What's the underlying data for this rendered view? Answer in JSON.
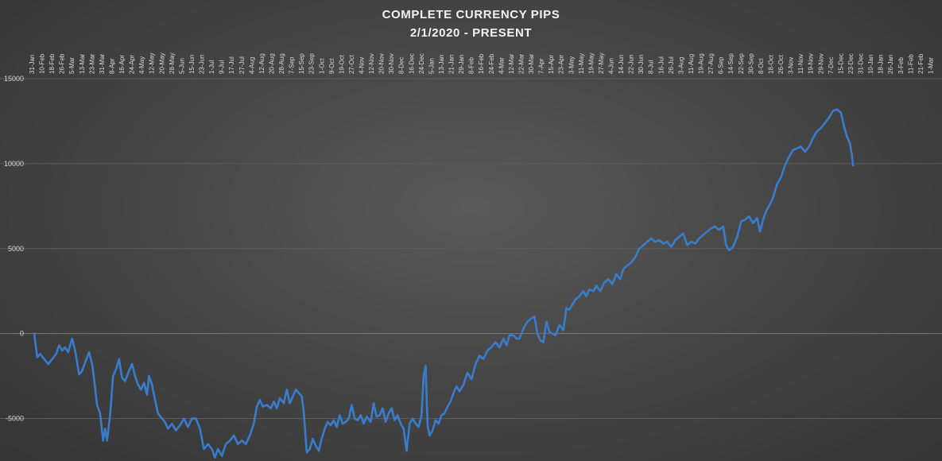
{
  "chart_data": {
    "type": "line",
    "title": "COMPLETE CURRENCY PIPS",
    "subtitle": "2/1/2020 - PRESENT",
    "xlabel": "",
    "ylabel": "",
    "ylim": [
      -7500,
      15000
    ],
    "yticks": [
      15000,
      10000,
      5000,
      0,
      -5000
    ],
    "grid": true,
    "x_tick_labels": [
      "31-Jan",
      "10-Feb",
      "18-Feb",
      "26-Feb",
      "5-Mar",
      "13-Mar",
      "23-Mar",
      "31-Mar",
      "8-Apr",
      "16-Apr",
      "24-Apr",
      "4-May",
      "12-May",
      "20-May",
      "28-May",
      "5-Jun",
      "15-Jun",
      "23-Jun",
      "1-Jul",
      "9-Jul",
      "17-Jul",
      "27-Jul",
      "4-Aug",
      "12-Aug",
      "20-Aug",
      "28-Aug",
      "7-Sep",
      "15-Sep",
      "23-Sep",
      "1-Oct",
      "9-Oct",
      "19-Oct",
      "27-Oct",
      "4-Nov",
      "12-Nov",
      "20-Nov",
      "30-Nov",
      "8-Dec",
      "16-Dec",
      "24-Dec",
      "5-Jan",
      "13-Jan",
      "21-Jan",
      "29-Jan",
      "8-Feb",
      "16-Feb",
      "24-Feb",
      "4-Mar",
      "12-Mar",
      "22-Mar",
      "30-Mar",
      "7-Apr",
      "15-Apr",
      "23-Apr",
      "3-May",
      "11-May",
      "19-May",
      "27-May",
      "4-Jun",
      "14-Jun",
      "22-Jun",
      "30-Jun",
      "8-Jul",
      "16-Jul",
      "26-Jul",
      "3-Aug",
      "11-Aug",
      "19-Aug",
      "27-Aug",
      "6-Sep",
      "14-Sep",
      "22-Sep",
      "30-Sep",
      "8-Oct",
      "18-Oct",
      "26-Oct",
      "3-Nov",
      "11-Nov",
      "19-Nov",
      "29-Nov",
      "7-Dec",
      "15-Dec",
      "23-Dec",
      "31-Dec",
      "10-Jan",
      "18-Jan",
      "26-Jan",
      "3-Feb",
      "11-Feb",
      "21-Feb",
      "1-Mar"
    ],
    "series": [
      {
        "color": "#3a7ccc",
        "points": [
          [
            0,
            0
          ],
          [
            0.3,
            -1400
          ],
          [
            0.6,
            -1200
          ],
          [
            1,
            -1500
          ],
          [
            1.4,
            -1800
          ],
          [
            1.8,
            -1500
          ],
          [
            2.2,
            -1200
          ],
          [
            2.5,
            -700
          ],
          [
            2.8,
            -1000
          ],
          [
            3.1,
            -800
          ],
          [
            3.4,
            -1100
          ],
          [
            3.8,
            -300
          ],
          [
            4.1,
            -1000
          ],
          [
            4.5,
            -2400
          ],
          [
            4.8,
            -2200
          ],
          [
            5.1,
            -1700
          ],
          [
            5.5,
            -1100
          ],
          [
            5.8,
            -1800
          ],
          [
            6,
            -2700
          ],
          [
            6.3,
            -4200
          ],
          [
            6.6,
            -4700
          ],
          [
            6.9,
            -6300
          ],
          [
            7.1,
            -5600
          ],
          [
            7.3,
            -6300
          ],
          [
            7.6,
            -4800
          ],
          [
            7.9,
            -2500
          ],
          [
            8.2,
            -2100
          ],
          [
            8.5,
            -1500
          ],
          [
            8.8,
            -2600
          ],
          [
            9.1,
            -2800
          ],
          [
            9.5,
            -2200
          ],
          [
            9.8,
            -1800
          ],
          [
            10.1,
            -2500
          ],
          [
            10.4,
            -3000
          ],
          [
            10.7,
            -3300
          ],
          [
            11,
            -2900
          ],
          [
            11.3,
            -3600
          ],
          [
            11.5,
            -2500
          ],
          [
            11.8,
            -3000
          ],
          [
            12.1,
            -3900
          ],
          [
            12.4,
            -4700
          ],
          [
            12.8,
            -5000
          ],
          [
            13.1,
            -5200
          ],
          [
            13.4,
            -5600
          ],
          [
            13.8,
            -5300
          ],
          [
            14.2,
            -5700
          ],
          [
            14.6,
            -5400
          ],
          [
            15,
            -5000
          ],
          [
            15.4,
            -5500
          ],
          [
            15.8,
            -5000
          ],
          [
            16.2,
            -5000
          ],
          [
            16.6,
            -5600
          ],
          [
            17,
            -6800
          ],
          [
            17.4,
            -6500
          ],
          [
            17.8,
            -6800
          ],
          [
            18.1,
            -7300
          ],
          [
            18.4,
            -6800
          ],
          [
            18.8,
            -7200
          ],
          [
            19.2,
            -6500
          ],
          [
            19.6,
            -6300
          ],
          [
            20,
            -6000
          ],
          [
            20.4,
            -6500
          ],
          [
            20.8,
            -6300
          ],
          [
            21.2,
            -6500
          ],
          [
            21.6,
            -6000
          ],
          [
            22,
            -5300
          ],
          [
            22.3,
            -4300
          ],
          [
            22.6,
            -3900
          ],
          [
            22.9,
            -4300
          ],
          [
            23.3,
            -4200
          ],
          [
            23.7,
            -4400
          ],
          [
            24,
            -4000
          ],
          [
            24.3,
            -4400
          ],
          [
            24.6,
            -3800
          ],
          [
            25,
            -4100
          ],
          [
            25.3,
            -3300
          ],
          [
            25.6,
            -4100
          ],
          [
            25.9,
            -3700
          ],
          [
            26.2,
            -3300
          ],
          [
            26.5,
            -3500
          ],
          [
            26.8,
            -3700
          ],
          [
            27,
            -4600
          ],
          [
            27.3,
            -7000
          ],
          [
            27.6,
            -6800
          ],
          [
            27.9,
            -6200
          ],
          [
            28.2,
            -6600
          ],
          [
            28.5,
            -6900
          ],
          [
            28.8,
            -6200
          ],
          [
            29.1,
            -5600
          ],
          [
            29.4,
            -5200
          ],
          [
            29.7,
            -5400
          ],
          [
            30,
            -5100
          ],
          [
            30.3,
            -5500
          ],
          [
            30.6,
            -4800
          ],
          [
            30.9,
            -5300
          ],
          [
            31.2,
            -5200
          ],
          [
            31.5,
            -5000
          ],
          [
            31.8,
            -4200
          ],
          [
            32.1,
            -5000
          ],
          [
            32.4,
            -5100
          ],
          [
            32.7,
            -4800
          ],
          [
            33,
            -5300
          ],
          [
            33.3,
            -4900
          ],
          [
            33.7,
            -5200
          ],
          [
            34,
            -4100
          ],
          [
            34.3,
            -4900
          ],
          [
            34.6,
            -4800
          ],
          [
            34.9,
            -4400
          ],
          [
            35.2,
            -5200
          ],
          [
            35.5,
            -4700
          ],
          [
            35.8,
            -4400
          ],
          [
            36.1,
            -5100
          ],
          [
            36.4,
            -4800
          ],
          [
            36.7,
            -5300
          ],
          [
            37,
            -5600
          ],
          [
            37.3,
            -6900
          ],
          [
            37.6,
            -5300
          ],
          [
            37.9,
            -5000
          ],
          [
            38.2,
            -5300
          ],
          [
            38.5,
            -5500
          ],
          [
            38.8,
            -4800
          ],
          [
            39,
            -2500
          ],
          [
            39.2,
            -1900
          ],
          [
            39.4,
            -5400
          ],
          [
            39.6,
            -6000
          ],
          [
            39.9,
            -5700
          ],
          [
            40.2,
            -5100
          ],
          [
            40.5,
            -5300
          ],
          [
            40.8,
            -4800
          ],
          [
            41.1,
            -4700
          ],
          [
            41.4,
            -4300
          ],
          [
            41.7,
            -4000
          ],
          [
            42,
            -3500
          ],
          [
            42.3,
            -3100
          ],
          [
            42.6,
            -3400
          ],
          [
            43,
            -3000
          ],
          [
            43.4,
            -2300
          ],
          [
            43.8,
            -2700
          ],
          [
            44.2,
            -1800
          ],
          [
            44.6,
            -1300
          ],
          [
            45,
            -1500
          ],
          [
            45.4,
            -1000
          ],
          [
            45.8,
            -800
          ],
          [
            46.2,
            -500
          ],
          [
            46.6,
            -800
          ],
          [
            47,
            -300
          ],
          [
            47.3,
            -700
          ],
          [
            47.6,
            -100
          ],
          [
            48,
            -100
          ],
          [
            48.3,
            -300
          ],
          [
            48.6,
            -300
          ],
          [
            49,
            300
          ],
          [
            49.4,
            700
          ],
          [
            49.8,
            900
          ],
          [
            50.1,
            1000
          ],
          [
            50.4,
            0
          ],
          [
            50.7,
            -400
          ],
          [
            51,
            -500
          ],
          [
            51.3,
            700
          ],
          [
            51.6,
            100
          ],
          [
            51.9,
            0
          ],
          [
            52.2,
            -100
          ],
          [
            52.6,
            500
          ],
          [
            53,
            200
          ],
          [
            53.3,
            1500
          ],
          [
            53.6,
            1400
          ],
          [
            53.9,
            1700
          ],
          [
            54.2,
            2000
          ],
          [
            54.6,
            2200
          ],
          [
            55,
            2500
          ],
          [
            55.3,
            2200
          ],
          [
            55.6,
            2600
          ],
          [
            56,
            2500
          ],
          [
            56.3,
            2800
          ],
          [
            56.7,
            2500
          ],
          [
            57.1,
            3000
          ],
          [
            57.5,
            3200
          ],
          [
            57.9,
            2900
          ],
          [
            58.3,
            3500
          ],
          [
            58.7,
            3200
          ],
          [
            59,
            3800
          ],
          [
            59.4,
            4000
          ],
          [
            59.8,
            4200
          ],
          [
            60.2,
            4500
          ],
          [
            60.6,
            5000
          ],
          [
            61,
            5200
          ],
          [
            61.4,
            5400
          ],
          [
            61.8,
            5600
          ],
          [
            62.2,
            5400
          ],
          [
            62.6,
            5500
          ],
          [
            63,
            5300
          ],
          [
            63.4,
            5400
          ],
          [
            63.8,
            5100
          ],
          [
            64.2,
            5500
          ],
          [
            64.6,
            5700
          ],
          [
            65,
            5900
          ],
          [
            65.4,
            5200
          ],
          [
            65.8,
            5400
          ],
          [
            66.2,
            5300
          ],
          [
            66.6,
            5600
          ],
          [
            67,
            5800
          ],
          [
            67.4,
            6000
          ],
          [
            67.8,
            6200
          ],
          [
            68.2,
            6300
          ],
          [
            68.6,
            6100
          ],
          [
            69,
            6300
          ],
          [
            69.3,
            5200
          ],
          [
            69.6,
            4900
          ],
          [
            70,
            5100
          ],
          [
            70.4,
            5700
          ],
          [
            70.8,
            6600
          ],
          [
            71.2,
            6700
          ],
          [
            71.6,
            6900
          ],
          [
            72,
            6500
          ],
          [
            72.4,
            6800
          ],
          [
            72.7,
            6000
          ],
          [
            73,
            6700
          ],
          [
            73.3,
            7200
          ],
          [
            73.6,
            7500
          ],
          [
            74,
            8000
          ],
          [
            74.4,
            8800
          ],
          [
            74.8,
            9200
          ],
          [
            75.2,
            9900
          ],
          [
            75.6,
            10400
          ],
          [
            76,
            10800
          ],
          [
            76.4,
            10900
          ],
          [
            76.8,
            11000
          ],
          [
            77.2,
            10700
          ],
          [
            77.6,
            11000
          ],
          [
            78,
            11500
          ],
          [
            78.4,
            11900
          ],
          [
            78.8,
            12100
          ],
          [
            79.2,
            12400
          ],
          [
            79.6,
            12700
          ],
          [
            80,
            13100
          ],
          [
            80.4,
            13200
          ],
          [
            80.8,
            13000
          ],
          [
            81.1,
            12200
          ],
          [
            81.4,
            11600
          ],
          [
            81.7,
            11200
          ],
          [
            81.9,
            10500
          ],
          [
            82,
            9900
          ]
        ]
      }
    ]
  }
}
